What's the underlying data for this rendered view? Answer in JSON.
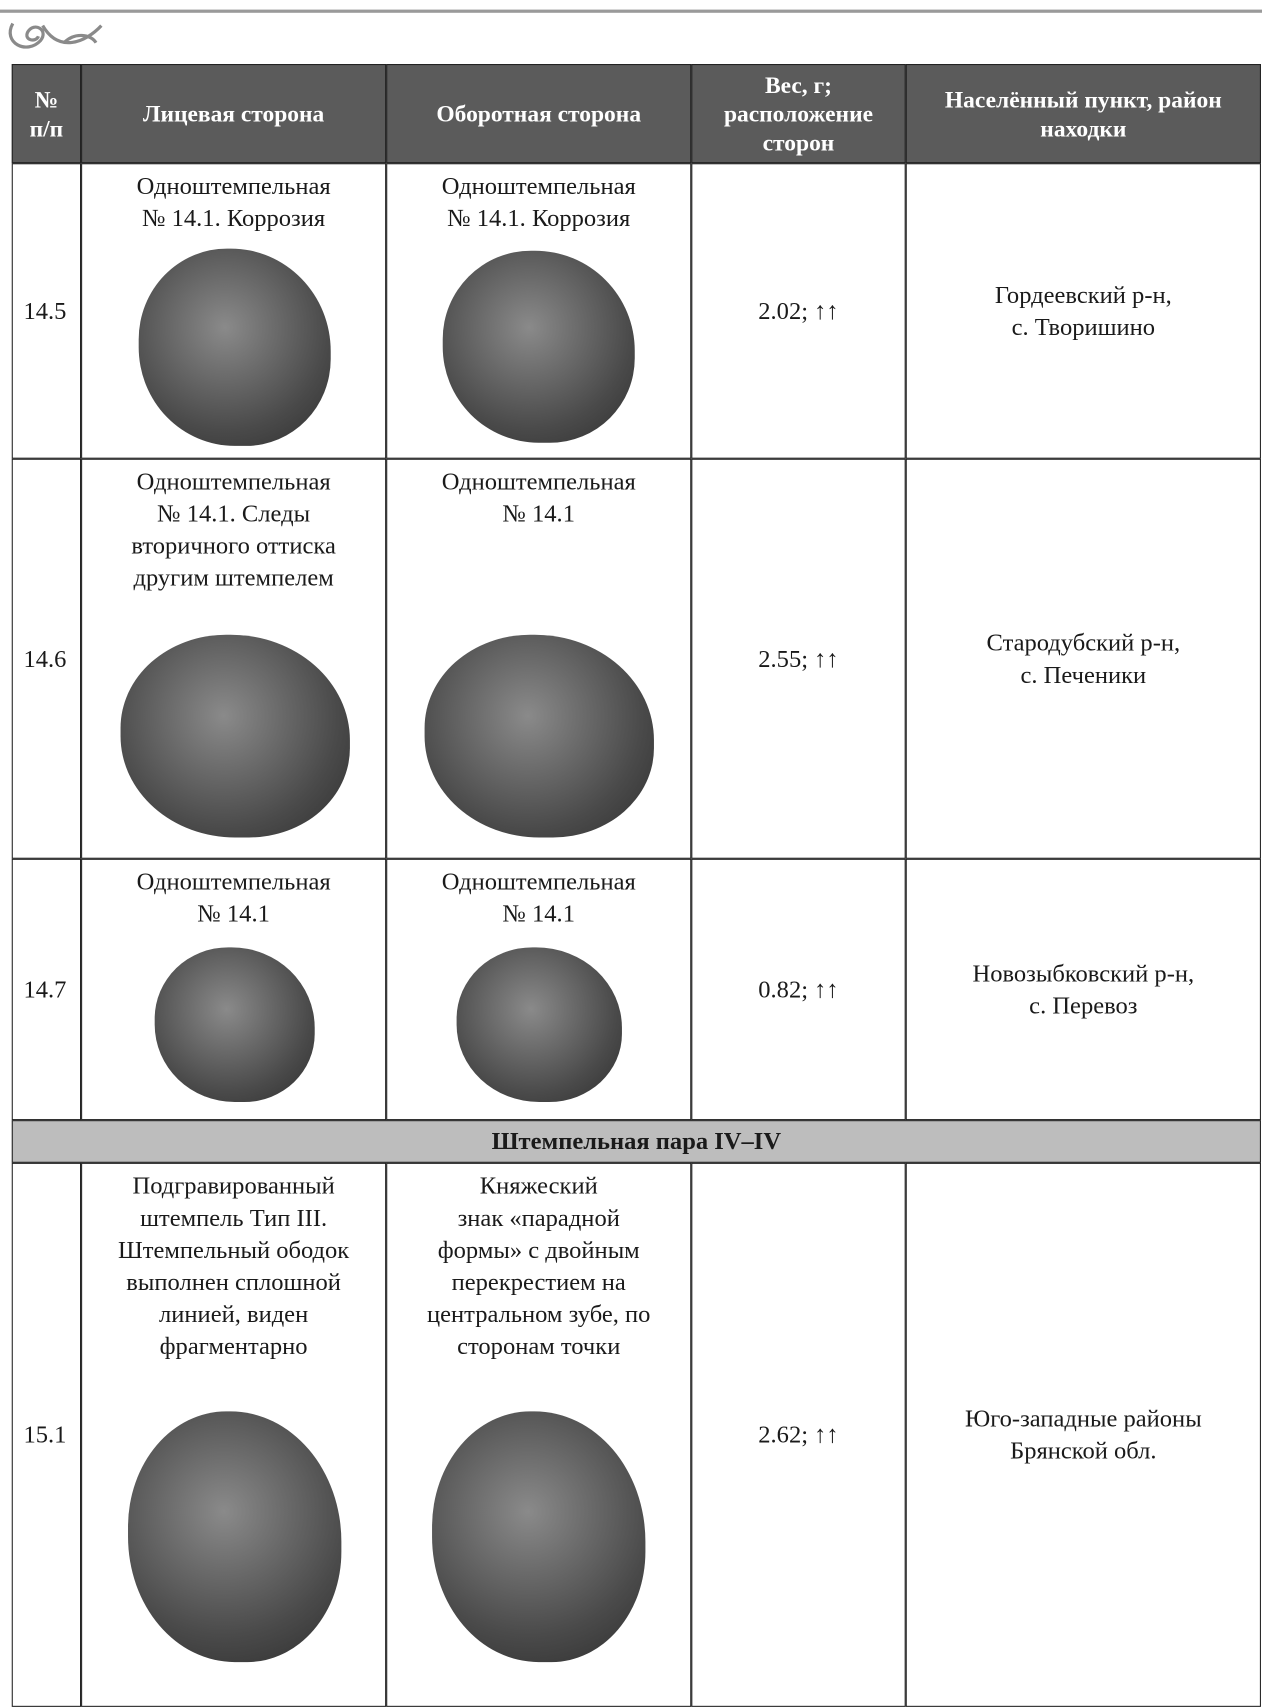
{
  "table": {
    "columns": [
      [
        "№",
        "п/п"
      ],
      [
        "Лицевая сторона"
      ],
      [
        "Оборотная сторона"
      ],
      [
        "Вес, г;",
        "расположение",
        "сторон"
      ],
      [
        "Населённый пункт, район",
        "находки"
      ]
    ],
    "rows": [
      {
        "number": "14.5",
        "obverse": [
          "Одноштемпельная",
          "№ 14.1. Коррозия"
        ],
        "reverse": [
          "Одноштемпельная",
          "№ 14.1. Коррозия"
        ],
        "weight": "2.02; ↑↑",
        "location": [
          "Гордеевский р-н,",
          "с. Творишино"
        ]
      },
      {
        "number": "14.6",
        "obverse": [
          "Одноштемпельная",
          "№ 14.1. Следы",
          "вторичного оттиска",
          "другим штемпелем"
        ],
        "reverse": [
          "Одноштемпельная",
          "№ 14.1"
        ],
        "weight": "2.55; ↑↑",
        "location": [
          "Стародубский р-н,",
          "с. Печеники"
        ]
      },
      {
        "number": "14.7",
        "obverse": [
          "Одноштемпельная",
          "№ 14.1"
        ],
        "reverse": [
          "Одноштемпельная",
          "№ 14.1"
        ],
        "weight": "0.82; ↑↑",
        "location": [
          "Новозыбковский р-н,",
          "с. Перевоз"
        ]
      },
      {
        "group": "Штемпельная пара IV–IV"
      },
      {
        "number": "15.1",
        "obverse": [
          "Подгравированный",
          "штемпель Тип III.",
          "Штемпельный ободок",
          "выполнен сплошной",
          "линией, виден",
          "фрагментарно"
        ],
        "reverse": [
          "Княжеский",
          "знак «парадной",
          "формы» с двойным",
          "перекрестием на",
          "центральном зубе, по",
          "сторонам точки"
        ],
        "weight": "2.62; ↑↑",
        "location": [
          "Юго-западные районы",
          "Брянской обл."
        ]
      }
    ]
  }
}
